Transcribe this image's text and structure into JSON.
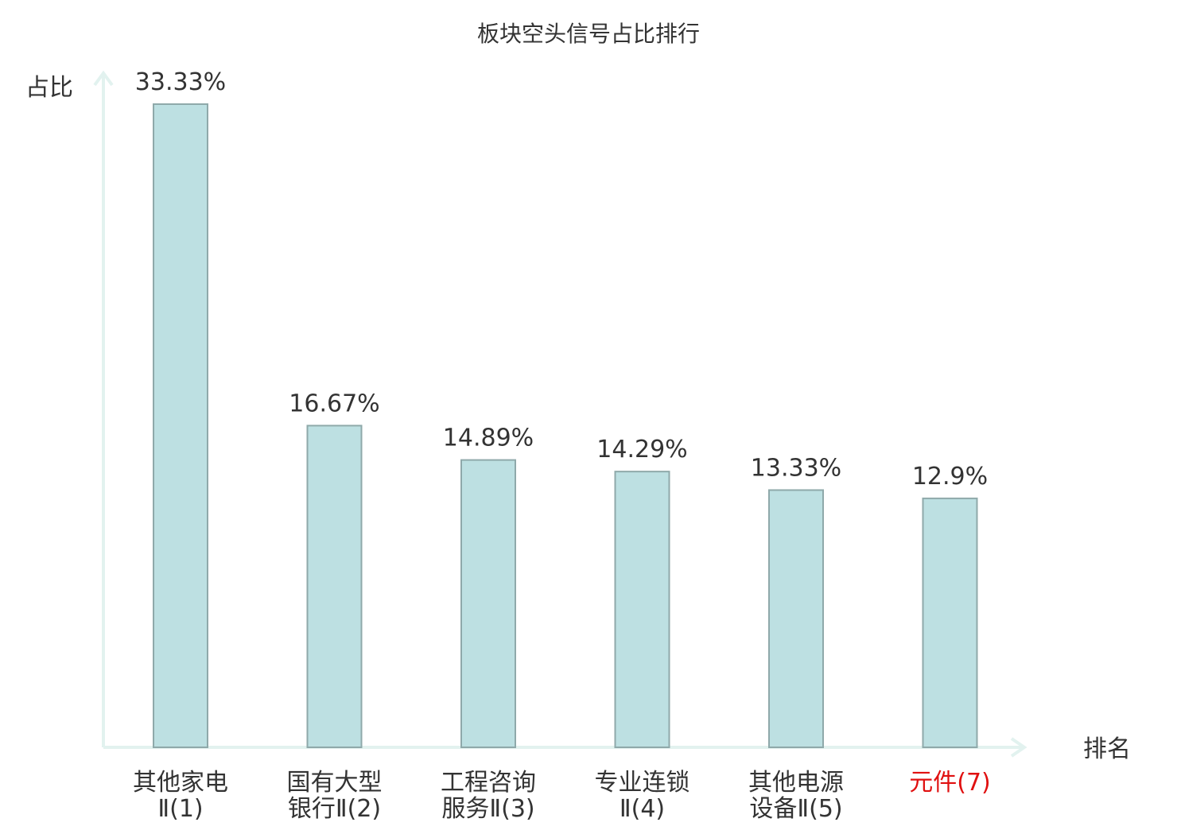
{
  "chart_data": {
    "type": "bar",
    "title": "板块空头信号占比排行",
    "ylabel": "占比",
    "xlabel": "排名",
    "ylim": [
      0,
      33.33
    ],
    "grid": false,
    "legend": "none",
    "categories": [
      [
        "其他家电",
        "Ⅱ(1)"
      ],
      [
        "国有大型",
        "银行Ⅱ(2)"
      ],
      [
        "工程咨询",
        "服务Ⅱ(3)"
      ],
      [
        "专业连锁",
        "Ⅱ(4)"
      ],
      [
        "其他电源",
        "设备Ⅱ(5)"
      ],
      [
        "元件(7)"
      ]
    ],
    "values": [
      33.33,
      16.67,
      14.89,
      14.29,
      13.33,
      12.9
    ],
    "value_labels": [
      "33.33%",
      "16.67%",
      "14.89%",
      "14.29%",
      "13.33%",
      "12.9%"
    ],
    "highlight_index": 5,
    "colors": {
      "bar_fill": "#bde0e2",
      "bar_stroke": "#8fa9aa",
      "axis": "#e2f2ef",
      "text": "#333333",
      "highlight_text": "#e01010"
    }
  }
}
